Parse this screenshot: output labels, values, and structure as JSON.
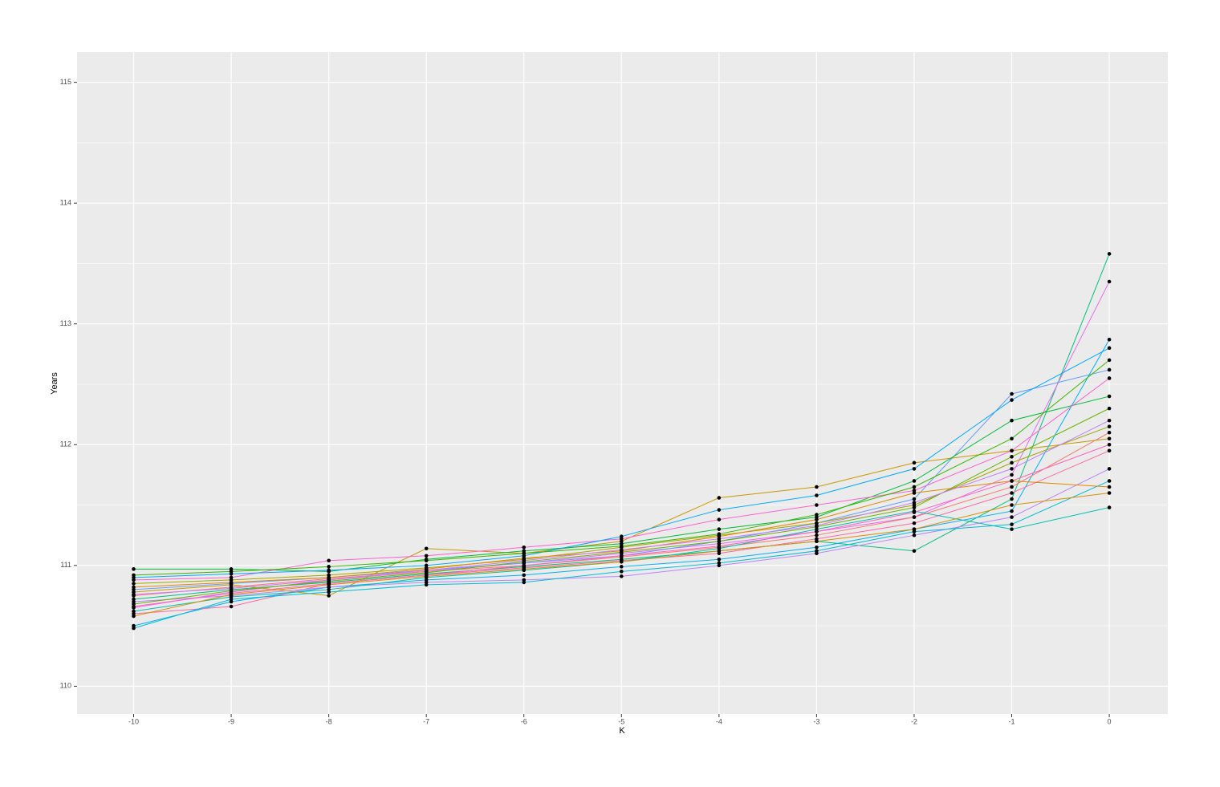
{
  "chart_data": {
    "type": "line",
    "x_label": "K",
    "y_label": "Years",
    "x": [
      -10,
      -9,
      -8,
      -7,
      -6,
      -5,
      -4,
      -3,
      -2,
      -1,
      0
    ],
    "xlim": [
      -10.58,
      0.6
    ],
    "ylim": [
      109.77,
      115.25
    ],
    "xticks": [
      -10,
      -9,
      -8,
      -7,
      -6,
      -5,
      -4,
      -3,
      -2,
      -1,
      0
    ],
    "yticks": [
      110,
      111,
      112,
      113,
      114,
      115
    ],
    "grid": true,
    "point_color": "#000000",
    "series": [
      {
        "color": "#00BF7D",
        "values": [
          110.72,
          110.8,
          110.86,
          110.93,
          110.99,
          111.05,
          111.12,
          111.2,
          111.12,
          111.55,
          113.58
        ]
      },
      {
        "color": "#E76BF3",
        "values": [
          110.65,
          110.78,
          110.88,
          110.95,
          111.02,
          111.1,
          111.18,
          111.28,
          111.4,
          111.75,
          113.35
        ]
      },
      {
        "color": "#619CFF",
        "values": [
          110.8,
          110.85,
          110.9,
          110.96,
          111.02,
          111.08,
          111.2,
          111.35,
          111.55,
          112.42,
          112.62
        ]
      },
      {
        "color": "#C99800",
        "values": [
          110.78,
          110.84,
          110.75,
          111.14,
          111.1,
          111.2,
          111.56,
          111.65,
          111.85,
          111.95,
          112.05
        ]
      },
      {
        "color": "#00B0F6",
        "values": [
          110.5,
          110.7,
          110.82,
          110.88,
          110.92,
          110.99,
          111.05,
          111.15,
          111.3,
          111.45,
          112.87
        ]
      },
      {
        "color": "#FF67A4",
        "values": [
          110.6,
          110.66,
          110.85,
          110.92,
          110.98,
          111.04,
          111.1,
          111.22,
          111.35,
          111.6,
          111.95
        ]
      },
      {
        "color": "#00BA38",
        "values": [
          110.97,
          110.97,
          110.95,
          111.05,
          111.12,
          111.18,
          111.3,
          111.4,
          111.7,
          112.2,
          112.4
        ]
      },
      {
        "color": "#A3A500",
        "values": [
          110.85,
          110.88,
          110.92,
          110.98,
          111.05,
          111.15,
          111.25,
          111.35,
          111.5,
          111.85,
          112.15
        ]
      },
      {
        "color": "#B983FF",
        "values": [
          110.7,
          110.75,
          110.82,
          110.86,
          110.88,
          110.91,
          111.0,
          111.1,
          111.25,
          111.4,
          111.8
        ]
      },
      {
        "color": "#F8766D",
        "values": [
          110.75,
          110.82,
          110.89,
          110.95,
          111.0,
          111.07,
          111.15,
          111.25,
          111.4,
          111.65,
          112.1
        ]
      },
      {
        "color": "#00C0AF",
        "values": [
          110.62,
          110.74,
          110.8,
          110.9,
          110.96,
          111.03,
          111.14,
          111.3,
          111.45,
          111.3,
          111.48
        ]
      },
      {
        "color": "#FD61D1",
        "values": [
          110.88,
          110.9,
          111.04,
          111.08,
          111.15,
          111.22,
          111.38,
          111.5,
          111.62,
          111.95,
          112.55
        ]
      },
      {
        "color": "#00BCD8",
        "values": [
          110.48,
          110.72,
          110.78,
          110.84,
          110.86,
          110.95,
          111.02,
          111.12,
          111.28,
          111.34,
          111.7
        ]
      },
      {
        "color": "#E58700",
        "values": [
          110.82,
          110.86,
          110.9,
          110.97,
          111.06,
          111.12,
          111.24,
          111.38,
          111.6,
          111.7,
          111.65
        ]
      },
      {
        "color": "#6BB100",
        "values": [
          110.68,
          110.79,
          110.87,
          110.94,
          111.03,
          111.11,
          111.2,
          111.32,
          111.48,
          111.9,
          112.3
        ]
      },
      {
        "color": "#00A9FF",
        "values": [
          110.9,
          110.93,
          110.96,
          111.0,
          111.08,
          111.24,
          111.46,
          111.58,
          111.8,
          112.37,
          112.8
        ]
      },
      {
        "color": "#D89000",
        "values": [
          110.58,
          110.76,
          110.84,
          110.91,
          110.97,
          111.03,
          111.12,
          111.2,
          111.3,
          111.5,
          111.6
        ]
      },
      {
        "color": "#C77CFF",
        "values": [
          110.76,
          110.81,
          110.88,
          110.96,
          111.04,
          111.13,
          111.22,
          111.33,
          111.52,
          111.8,
          112.2
        ]
      },
      {
        "color": "#FF62BC",
        "values": [
          110.66,
          110.77,
          110.85,
          110.92,
          111.0,
          111.08,
          111.16,
          111.28,
          111.44,
          111.7,
          112.0
        ]
      },
      {
        "color": "#39B600",
        "values": [
          110.92,
          110.95,
          110.99,
          111.04,
          111.1,
          111.16,
          111.26,
          111.42,
          111.65,
          112.05,
          112.7
        ]
      }
    ]
  }
}
